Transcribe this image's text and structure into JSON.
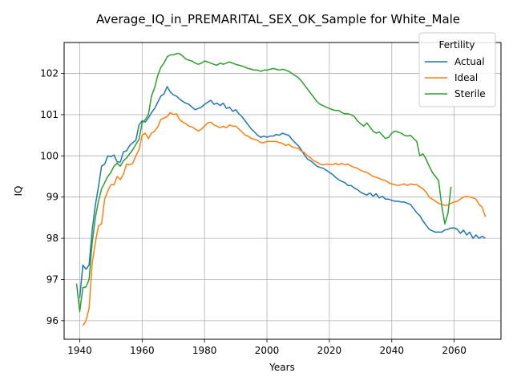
{
  "chart_data": {
    "type": "line",
    "title": "Average_IQ_in_PREMARITAL_SEX_OK_Sample for White_Male",
    "xlabel": "Years",
    "ylabel": "IQ",
    "xlim": [
      1935,
      2075
    ],
    "ylim": [
      95.55,
      102.75
    ],
    "xticks": [
      1940,
      1960,
      1980,
      2000,
      2020,
      2040,
      2060
    ],
    "yticks": [
      96,
      97,
      98,
      99,
      100,
      101,
      102
    ],
    "grid": true,
    "legend": {
      "title": "Fertility",
      "placement": "top-right"
    },
    "colors": {
      "Actual": "#1f77b4",
      "Ideal": "#ff7f0e",
      "Sterile": "#2ca02c"
    },
    "series": [
      {
        "name": "Actual",
        "x": [
          1940,
          1941,
          1942,
          1943,
          1944,
          1945,
          1946,
          1947,
          1948,
          1949,
          1950,
          1951,
          1952,
          1953,
          1954,
          1955,
          1956,
          1957,
          1958,
          1959,
          1960,
          1961,
          1962,
          1963,
          1964,
          1965,
          1966,
          1967,
          1968,
          1969,
          1970,
          1971,
          1972,
          1973,
          1974,
          1975,
          1976,
          1977,
          1978,
          1979,
          1980,
          1981,
          1982,
          1983,
          1984,
          1985,
          1986,
          1987,
          1988,
          1989,
          1990,
          1991,
          1992,
          1993,
          1994,
          1995,
          1996,
          1997,
          1998,
          1999,
          2000,
          2001,
          2002,
          2003,
          2004,
          2005,
          2006,
          2007,
          2008,
          2009,
          2010,
          2011,
          2012,
          2013,
          2014,
          2015,
          2016,
          2017,
          2018,
          2019,
          2020,
          2021,
          2022,
          2023,
          2024,
          2025,
          2026,
          2027,
          2028,
          2029,
          2030,
          2031,
          2032,
          2033,
          2034,
          2035,
          2036,
          2037,
          2038,
          2039,
          2040,
          2041,
          2042,
          2043,
          2044,
          2045,
          2046,
          2047,
          2048,
          2049,
          2050,
          2051,
          2052,
          2053,
          2054,
          2055,
          2056,
          2057,
          2058,
          2059,
          2060,
          2061,
          2062,
          2063,
          2064,
          2065,
          2066,
          2067,
          2068,
          2069,
          2070
        ],
        "values": [
          96.55,
          97.35,
          97.25,
          97.35,
          98.2,
          98.8,
          99.25,
          99.75,
          99.8,
          100.0,
          99.98,
          100.02,
          99.85,
          99.85,
          100.1,
          100.12,
          100.25,
          100.32,
          100.38,
          100.75,
          100.85,
          100.82,
          100.92,
          101.05,
          101.15,
          101.3,
          101.45,
          101.5,
          101.68,
          101.55,
          101.48,
          101.45,
          101.38,
          101.32,
          101.28,
          101.25,
          101.18,
          101.12,
          101.15,
          101.18,
          101.25,
          101.3,
          101.35,
          101.25,
          101.28,
          101.22,
          101.28,
          101.15,
          101.18,
          101.08,
          101.12,
          101.02,
          100.95,
          100.85,
          100.75,
          100.65,
          100.58,
          100.5,
          100.45,
          100.48,
          100.45,
          100.48,
          100.48,
          100.52,
          100.5,
          100.55,
          100.52,
          100.5,
          100.4,
          100.32,
          100.25,
          100.15,
          100.02,
          99.92,
          99.88,
          99.82,
          99.75,
          99.72,
          99.7,
          99.65,
          99.6,
          99.55,
          99.48,
          99.42,
          99.38,
          99.35,
          99.28,
          99.28,
          99.22,
          99.18,
          99.12,
          99.08,
          99.05,
          99.1,
          99.02,
          99.08,
          98.98,
          99.02,
          98.95,
          98.95,
          98.92,
          98.9,
          98.9,
          98.88,
          98.88,
          98.85,
          98.82,
          98.72,
          98.62,
          98.55,
          98.42,
          98.32,
          98.22,
          98.18,
          98.15,
          98.15,
          98.15,
          98.2,
          98.22,
          98.25,
          98.25,
          98.22,
          98.12,
          98.2,
          98.08,
          98.15,
          98.0,
          98.08,
          98.0,
          98.05,
          98.0
        ],
        "note": ""
      },
      {
        "name": "Ideal",
        "x": [
          1941,
          1942,
          1943,
          1944,
          1945,
          1946,
          1947,
          1948,
          1949,
          1950,
          1951,
          1952,
          1953,
          1954,
          1955,
          1956,
          1957,
          1958,
          1959,
          1960,
          1961,
          1962,
          1963,
          1964,
          1965,
          1966,
          1967,
          1968,
          1969,
          1970,
          1971,
          1972,
          1973,
          1974,
          1975,
          1976,
          1977,
          1978,
          1979,
          1980,
          1981,
          1982,
          1983,
          1984,
          1985,
          1986,
          1987,
          1988,
          1989,
          1990,
          1991,
          1992,
          1993,
          1994,
          1995,
          1996,
          1997,
          1998,
          1999,
          2000,
          2001,
          2002,
          2003,
          2004,
          2005,
          2006,
          2007,
          2008,
          2009,
          2010,
          2011,
          2012,
          2013,
          2014,
          2015,
          2016,
          2017,
          2018,
          2019,
          2020,
          2021,
          2022,
          2023,
          2024,
          2025,
          2026,
          2027,
          2028,
          2029,
          2030,
          2031,
          2032,
          2033,
          2034,
          2035,
          2036,
          2037,
          2038,
          2039,
          2040,
          2041,
          2042,
          2043,
          2044,
          2045,
          2046,
          2047,
          2048,
          2049,
          2050,
          2051,
          2052,
          2053,
          2054,
          2055,
          2056,
          2057,
          2058,
          2059,
          2060,
          2061,
          2062,
          2063,
          2064,
          2065,
          2066,
          2067,
          2068,
          2069,
          2070
        ],
        "values": [
          95.88,
          96.0,
          96.3,
          97.4,
          97.9,
          98.3,
          98.35,
          98.95,
          99.15,
          99.3,
          99.3,
          99.5,
          99.42,
          99.55,
          99.8,
          99.78,
          99.82,
          100.0,
          100.15,
          100.5,
          100.55,
          100.42,
          100.55,
          100.6,
          100.7,
          100.88,
          100.92,
          100.95,
          101.05,
          101.0,
          101.02,
          100.88,
          100.82,
          100.78,
          100.72,
          100.7,
          100.65,
          100.6,
          100.65,
          100.72,
          100.8,
          100.82,
          100.75,
          100.72,
          100.68,
          100.72,
          100.68,
          100.75,
          100.72,
          100.72,
          100.65,
          100.58,
          100.5,
          100.48,
          100.42,
          100.4,
          100.38,
          100.32,
          100.32,
          100.35,
          100.35,
          100.35,
          100.35,
          100.32,
          100.3,
          100.25,
          100.28,
          100.22,
          100.2,
          100.18,
          100.12,
          100.08,
          100.0,
          99.95,
          99.88,
          99.85,
          99.8,
          99.78,
          99.8,
          99.8,
          99.78,
          99.82,
          99.78,
          99.82,
          99.78,
          99.8,
          99.75,
          99.72,
          99.7,
          99.65,
          99.62,
          99.6,
          99.55,
          99.5,
          99.48,
          99.45,
          99.42,
          99.4,
          99.35,
          99.32,
          99.3,
          99.28,
          99.3,
          99.32,
          99.28,
          99.32,
          99.3,
          99.3,
          99.25,
          99.2,
          99.12,
          99.0,
          98.95,
          98.9,
          98.85,
          98.82,
          98.8,
          98.8,
          98.85,
          98.88,
          98.9,
          98.95,
          99.0,
          99.02,
          99.0,
          98.98,
          98.95,
          98.82,
          98.75,
          98.52
        ],
        "note": ""
      },
      {
        "name": "Sterile",
        "x": [
          1939,
          1940,
          1941,
          1942,
          1943,
          1944,
          1945,
          1946,
          1947,
          1948,
          1949,
          1950,
          1951,
          1952,
          1953,
          1954,
          1955,
          1956,
          1957,
          1958,
          1959,
          1960,
          1961,
          1962,
          1963,
          1964,
          1965,
          1966,
          1967,
          1968,
          1969,
          1970,
          1971,
          1972,
          1973,
          1974,
          1975,
          1976,
          1977,
          1978,
          1979,
          1980,
          1981,
          1982,
          1983,
          1984,
          1985,
          1986,
          1987,
          1988,
          1989,
          1990,
          1991,
          1992,
          1993,
          1994,
          1995,
          1996,
          1997,
          1998,
          1999,
          2000,
          2001,
          2002,
          2003,
          2004,
          2005,
          2006,
          2007,
          2008,
          2009,
          2010,
          2011,
          2012,
          2013,
          2014,
          2015,
          2016,
          2017,
          2018,
          2019,
          2020,
          2021,
          2022,
          2023,
          2024,
          2025,
          2026,
          2027,
          2028,
          2029,
          2030,
          2031,
          2032,
          2033,
          2034,
          2035,
          2036,
          2037,
          2038,
          2039,
          2040,
          2041,
          2042,
          2043,
          2044,
          2045,
          2046,
          2047,
          2048,
          2049,
          2050,
          2051,
          2052,
          2053,
          2054,
          2055,
          2056,
          2057,
          2058,
          2059
        ],
        "values": [
          96.9,
          96.22,
          96.8,
          96.82,
          97.0,
          97.9,
          98.5,
          98.9,
          99.2,
          99.35,
          99.5,
          99.6,
          99.75,
          99.82,
          99.75,
          99.88,
          99.95,
          100.05,
          100.15,
          100.28,
          100.4,
          100.8,
          100.88,
          101.0,
          101.45,
          101.65,
          101.95,
          102.15,
          102.25,
          102.4,
          102.45,
          102.45,
          102.48,
          102.48,
          102.42,
          102.35,
          102.32,
          102.3,
          102.25,
          102.22,
          102.25,
          102.3,
          102.28,
          102.25,
          102.22,
          102.2,
          102.25,
          102.22,
          102.25,
          102.28,
          102.25,
          102.22,
          102.2,
          102.18,
          102.15,
          102.12,
          102.1,
          102.08,
          102.08,
          102.05,
          102.08,
          102.08,
          102.1,
          102.12,
          102.1,
          102.08,
          102.1,
          102.08,
          102.05,
          102.0,
          101.95,
          101.9,
          101.82,
          101.72,
          101.62,
          101.52,
          101.42,
          101.32,
          101.25,
          101.22,
          101.18,
          101.15,
          101.12,
          101.1,
          101.1,
          101.05,
          101.02,
          101.02,
          101.0,
          100.95,
          100.85,
          100.78,
          100.72,
          100.8,
          100.7,
          100.6,
          100.55,
          100.58,
          100.5,
          100.42,
          100.45,
          100.55,
          100.6,
          100.58,
          100.55,
          100.5,
          100.48,
          100.5,
          100.42,
          100.35,
          100.0,
          100.05,
          99.92,
          99.75,
          99.6,
          99.5,
          99.4,
          98.8,
          98.35,
          98.6,
          99.25
        ],
        "note": ""
      }
    ]
  }
}
